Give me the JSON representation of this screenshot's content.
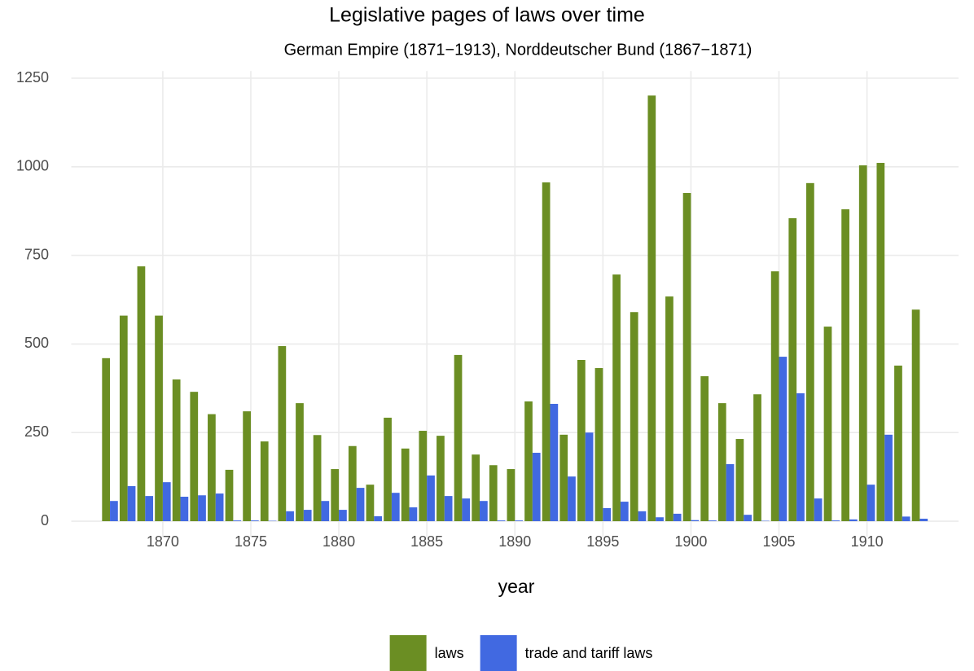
{
  "chart_data": {
    "type": "bar",
    "title": "Legislative pages of laws over time",
    "subtitle": "German Empire (1871−1913), Norddeutscher Bund (1867−1871)",
    "x_label": "year",
    "x": [
      1867,
      1868,
      1869,
      1870,
      1871,
      1872,
      1873,
      1874,
      1875,
      1876,
      1877,
      1878,
      1879,
      1880,
      1881,
      1882,
      1883,
      1884,
      1885,
      1886,
      1887,
      1888,
      1889,
      1890,
      1891,
      1892,
      1893,
      1894,
      1895,
      1896,
      1897,
      1898,
      1899,
      1900,
      1901,
      1902,
      1903,
      1904,
      1905,
      1906,
      1907,
      1908,
      1909,
      1910,
      1911,
      1912,
      1913
    ],
    "series": [
      {
        "name": "laws",
        "color": "#6b8e23",
        "values": [
          460,
          580,
          719,
          580,
          400,
          365,
          302,
          145,
          310,
          225,
          494,
          333,
          243,
          147,
          212,
          103,
          292,
          205,
          255,
          241,
          469,
          188,
          158,
          147,
          338,
          956,
          244,
          455,
          432,
          696,
          590,
          1201,
          634,
          926,
          409,
          333,
          232,
          358,
          705,
          855,
          954,
          549,
          880,
          1004,
          1011,
          439,
          597
        ]
      },
      {
        "name": "trade and tariff laws",
        "color": "#4169e1",
        "values": [
          57,
          99,
          71,
          110,
          69,
          73,
          78,
          2,
          2,
          1,
          28,
          32,
          57,
          32,
          94,
          14,
          80,
          39,
          129,
          71,
          64,
          57,
          2,
          2,
          193,
          331,
          126,
          250,
          37,
          55,
          28,
          11,
          21,
          3,
          2,
          161,
          18,
          1,
          464,
          361,
          64,
          2,
          5,
          103,
          244,
          13,
          7
        ]
      }
    ],
    "xlim": [
      1864.8,
      1915.2
    ],
    "xticks": [
      1870,
      1875,
      1880,
      1885,
      1890,
      1895,
      1900,
      1905,
      1910
    ],
    "ylim": [
      -45,
      1270
    ],
    "yticks": [
      0,
      250,
      500,
      750,
      1000,
      1250
    ],
    "grid": true,
    "legend": "bottom"
  }
}
